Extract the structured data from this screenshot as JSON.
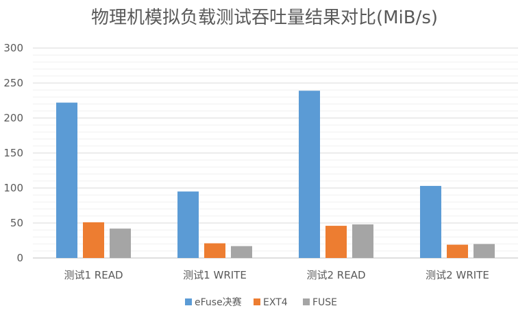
{
  "chart_data": {
    "type": "bar",
    "title": "物理机模拟负载测试吞吐量结果对比(MiB/s)",
    "categories": [
      "测试1 READ",
      "测试1 WRITE",
      "测试2 READ",
      "测试2 WRITE"
    ],
    "series": [
      {
        "name": "eFuse决赛",
        "color": "#5B9BD5",
        "values": [
          222,
          95,
          239,
          103
        ]
      },
      {
        "name": "EXT4",
        "color": "#ED7D31",
        "values": [
          51,
          21,
          46,
          19
        ]
      },
      {
        "name": "FUSE",
        "color": "#A5A5A5",
        "values": [
          42,
          17,
          48,
          20
        ]
      }
    ],
    "ylim": [
      0,
      300
    ],
    "yticks": [
      0,
      50,
      100,
      150,
      200,
      250,
      300
    ],
    "grid": true,
    "legend_position": "bottom"
  }
}
